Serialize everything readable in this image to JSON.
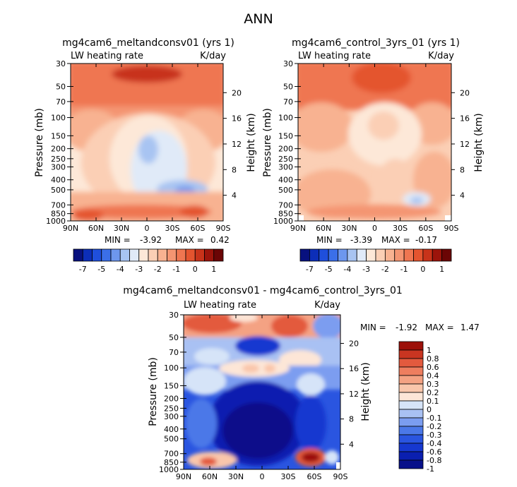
{
  "page": {
    "title": "ANN",
    "stats_prefix_min": "MIN =",
    "stats_prefix_max": "MAX ="
  },
  "colors": {
    "upper_scale": [
      "#08117f",
      "#0c2eb8",
      "#1f4fdc",
      "#3b6fe8",
      "#6d97ee",
      "#a8c4f2",
      "#e0eaf8",
      "#fde8d8",
      "#fbcfb5",
      "#f8b291",
      "#f49572",
      "#ef7651",
      "#e4542f",
      "#c8331a",
      "#9c140b",
      "#6b0505"
    ],
    "diff_scale": [
      "#07108a",
      "#0a1fb0",
      "#1638d0",
      "#2a55e0",
      "#4b78e8",
      "#7b9df0",
      "#a9c1f3",
      "#d6e4f8",
      "#fde6d7",
      "#f9c6ab",
      "#f4a283",
      "#ee7e5f",
      "#e35a3e",
      "#c93521",
      "#9c1009"
    ]
  },
  "chart_data": [
    {
      "type": "heatmap",
      "title": "mg4cam6_meltandconsv01 (yrs 1)",
      "variable_label": "LW heating rate",
      "units_label": "K/day",
      "ylabel": "Pressure (mb)",
      "y2label": "Height (km)",
      "x_ticks": [
        "90N",
        "60N",
        "30N",
        "0",
        "30S",
        "60S",
        "90S"
      ],
      "y_ticks": [
        "30",
        "50",
        "70",
        "100",
        "150",
        "200",
        "250",
        "300",
        "400",
        "500",
        "700",
        "850",
        "1000"
      ],
      "y_tick_values": [
        30,
        50,
        70,
        100,
        150,
        200,
        250,
        300,
        400,
        500,
        700,
        850,
        1000
      ],
      "height_ticks": [
        "20",
        "16",
        "12",
        "8",
        "4"
      ],
      "height_tick_values": [
        20,
        16,
        12,
        8,
        4
      ],
      "xlim": [
        90,
        -90
      ],
      "ylim": [
        30,
        1000
      ],
      "min": "-3.92",
      "max": "0.42",
      "colorbar": {
        "labels": [
          "-7",
          "-5",
          "-4",
          "-3",
          "-2",
          "-1",
          "0",
          "1"
        ],
        "levels": [
          -7,
          -6,
          -5,
          -4.5,
          -4,
          -3.5,
          -3,
          -2.5,
          -2,
          -1.5,
          -1,
          -0.5,
          0,
          0.5,
          1
        ]
      }
    },
    {
      "type": "heatmap",
      "title": "mg4cam6_control_3yrs_01 (yrs 1)",
      "variable_label": "LW heating rate",
      "units_label": "K/day",
      "ylabel": "Pressure (mb)",
      "y2label": "Height (km)",
      "x_ticks": [
        "90N",
        "60N",
        "30N",
        "0",
        "30S",
        "60S",
        "90S"
      ],
      "y_ticks": [
        "30",
        "50",
        "70",
        "100",
        "150",
        "200",
        "250",
        "300",
        "400",
        "500",
        "700",
        "850",
        "1000"
      ],
      "y_tick_values": [
        30,
        50,
        70,
        100,
        150,
        200,
        250,
        300,
        400,
        500,
        700,
        850,
        1000
      ],
      "height_ticks": [
        "20",
        "16",
        "12",
        "8",
        "4"
      ],
      "height_tick_values": [
        20,
        16,
        12,
        8,
        4
      ],
      "xlim": [
        90,
        -90
      ],
      "ylim": [
        30,
        1000
      ],
      "min": "-3.39",
      "max": "-0.17",
      "colorbar": {
        "labels": [
          "-7",
          "-5",
          "-4",
          "-3",
          "-2",
          "-1",
          "0",
          "1"
        ],
        "levels": [
          -7,
          -6,
          -5,
          -4.5,
          -4,
          -3.5,
          -3,
          -2.5,
          -2,
          -1.5,
          -1,
          -0.5,
          0,
          0.5,
          1
        ]
      }
    },
    {
      "type": "heatmap",
      "title": "mg4cam6_meltandconsv01 - mg4cam6_control_3yrs_01",
      "variable_label": "LW heating rate",
      "units_label": "K/day",
      "ylabel": "Pressure (mb)",
      "y2label": "Height (km)",
      "x_ticks": [
        "90N",
        "60N",
        "30N",
        "0",
        "30S",
        "60S",
        "90S"
      ],
      "y_ticks": [
        "30",
        "50",
        "70",
        "100",
        "150",
        "200",
        "250",
        "300",
        "400",
        "500",
        "700",
        "850",
        "1000"
      ],
      "y_tick_values": [
        30,
        50,
        70,
        100,
        150,
        200,
        250,
        300,
        400,
        500,
        700,
        850,
        1000
      ],
      "height_ticks": [
        "20",
        "16",
        "12",
        "8",
        "4"
      ],
      "height_tick_values": [
        20,
        16,
        12,
        8,
        4
      ],
      "xlim": [
        90,
        -90
      ],
      "ylim": [
        30,
        1000
      ],
      "min": "-1.92",
      "max": "1.47",
      "colorbar": {
        "labels": [
          "1",
          "0.8",
          "0.6",
          "0.4",
          "0.3",
          "0.2",
          "0.1",
          "0",
          "-0.1",
          "-0.2",
          "-0.3",
          "-0.4",
          "-0.6",
          "-0.8",
          "-1"
        ],
        "levels": [
          1,
          0.8,
          0.6,
          0.4,
          0.3,
          0.2,
          0.1,
          0,
          -0.1,
          -0.2,
          -0.3,
          -0.4,
          -0.6,
          -0.8,
          -1
        ]
      }
    }
  ]
}
